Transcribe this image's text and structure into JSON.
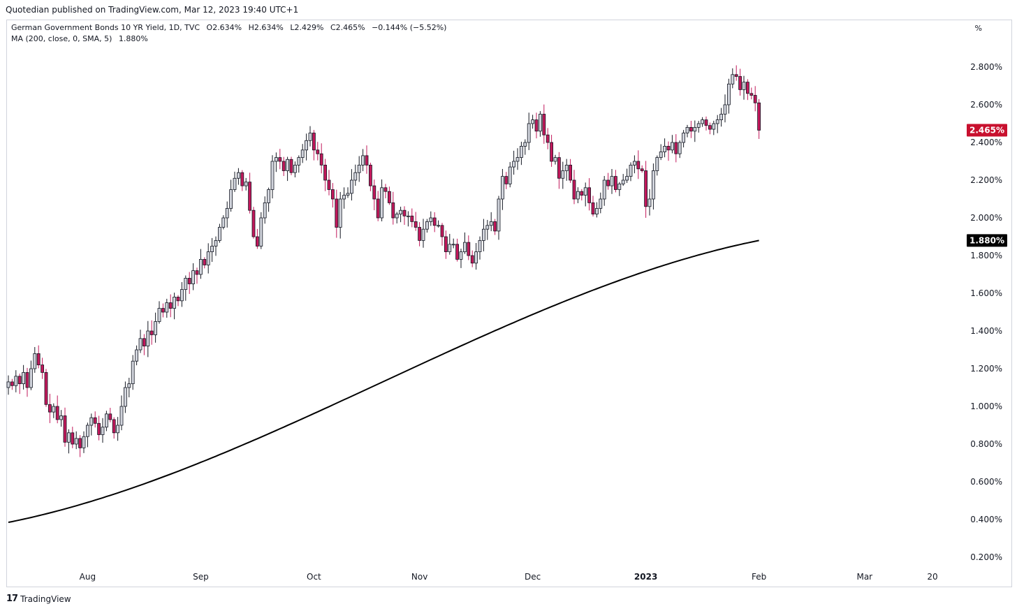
{
  "header": {
    "publisher": "Quotedian published on TradingView.com, Mar 12, 2023 19:40 UTC+1"
  },
  "legend": {
    "symbol": "German Government Bonds 10 YR Yield, 1D, TVC",
    "open": "O2.634%",
    "high": "H2.634%",
    "low": "L2.429%",
    "close": "C2.465%",
    "change": "−0.144% (−5.52%)",
    "ma_label": "MA (200, close, 0, SMA, 5)",
    "ma_value": "1.880%"
  },
  "axis_unit": "%",
  "brand": "TradingView",
  "colors": {
    "up_fill": "#d1d4dc",
    "down_fill": "#c2185b",
    "ma_line": "#000000",
    "last_badge": "#c8102e",
    "ma_badge": "#000000"
  },
  "chart_data": {
    "type": "candlestick",
    "y_unit": "%",
    "ylim": [
      0.15,
      2.95
    ],
    "y_ticks": [
      "2.800%",
      "2.600%",
      "2.400%",
      "2.200%",
      "2.000%",
      "1.800%",
      "1.600%",
      "1.400%",
      "1.200%",
      "1.000%",
      "0.800%",
      "0.600%",
      "0.400%",
      "0.200%"
    ],
    "y_tick_values": [
      2.8,
      2.6,
      2.4,
      2.2,
      2.0,
      1.8,
      1.6,
      1.4,
      1.2,
      1.0,
      0.8,
      0.6,
      0.4,
      0.2
    ],
    "x_ticks": [
      {
        "label": "Aug",
        "index": 21,
        "bold": false
      },
      {
        "label": "Sep",
        "index": 51,
        "bold": false
      },
      {
        "label": "Oct",
        "index": 81,
        "bold": false
      },
      {
        "label": "Nov",
        "index": 109,
        "bold": false
      },
      {
        "label": "Dec",
        "index": 139,
        "bold": false
      },
      {
        "label": "2023",
        "index": 169,
        "bold": true
      },
      {
        "label": "Feb",
        "index": 199,
        "bold": false
      },
      {
        "label": "Mar",
        "index": 227,
        "bold": false
      },
      {
        "label": "20",
        "index": 245,
        "bold": false
      }
    ],
    "closes": [
      1.13,
      1.11,
      1.16,
      1.12,
      1.18,
      1.1,
      1.2,
      1.28,
      1.22,
      1.18,
      1.01,
      0.97,
      1.0,
      0.93,
      0.95,
      0.81,
      0.86,
      0.8,
      0.83,
      0.78,
      0.84,
      0.9,
      0.94,
      0.91,
      0.85,
      0.89,
      0.96,
      0.93,
      0.86,
      0.9,
      1.0,
      1.1,
      1.12,
      1.24,
      1.3,
      1.36,
      1.32,
      1.4,
      1.38,
      1.45,
      1.52,
      1.5,
      1.55,
      1.52,
      1.58,
      1.56,
      1.62,
      1.68,
      1.65,
      1.72,
      1.7,
      1.78,
      1.75,
      1.82,
      1.85,
      1.88,
      1.95,
      2.0,
      2.05,
      2.15,
      2.21,
      2.24,
      2.17,
      2.19,
      2.04,
      1.9,
      1.85,
      2.0,
      2.08,
      2.15,
      2.3,
      2.32,
      2.3,
      2.25,
      2.31,
      2.24,
      2.28,
      2.32,
      2.36,
      2.41,
      2.45,
      2.36,
      2.34,
      2.28,
      2.2,
      2.15,
      2.1,
      1.95,
      2.1,
      2.12,
      2.13,
      2.2,
      2.24,
      2.28,
      2.33,
      2.28,
      2.17,
      2.1,
      2.0,
      2.16,
      2.14,
      2.08,
      2.0,
      2.02,
      2.04,
      2.01,
      2.01,
      1.98,
      1.95,
      1.88,
      1.94,
      1.98,
      2.0,
      1.96,
      1.96,
      1.9,
      1.82,
      1.86,
      1.86,
      1.78,
      1.82,
      1.87,
      1.8,
      1.76,
      1.82,
      1.88,
      1.94,
      1.96,
      1.98,
      1.93,
      2.1,
      2.22,
      2.18,
      2.27,
      2.3,
      2.32,
      2.38,
      2.4,
      2.5,
      2.52,
      2.46,
      2.55,
      2.44,
      2.4,
      2.3,
      2.32,
      2.21,
      2.25,
      2.28,
      2.2,
      2.1,
      2.14,
      2.12,
      2.16,
      2.08,
      2.02,
      2.05,
      2.1,
      2.2,
      2.17,
      2.22,
      2.15,
      2.18,
      2.2,
      2.22,
      2.28,
      2.3,
      2.26,
      2.25,
      2.06,
      2.1,
      2.25,
      2.32,
      2.35,
      2.38,
      2.36,
      2.4,
      2.34,
      2.4,
      2.45,
      2.48,
      2.46,
      2.48,
      2.5,
      2.52,
      2.49,
      2.47,
      2.5,
      2.52,
      2.55,
      2.6,
      2.71,
      2.76,
      2.75,
      2.68,
      2.72,
      2.66,
      2.65,
      2.61,
      2.465
    ],
    "ma_value": 1.88,
    "last_value": 2.465,
    "ma_label_text": "1.880%",
    "last_label_text": "2.465%"
  }
}
